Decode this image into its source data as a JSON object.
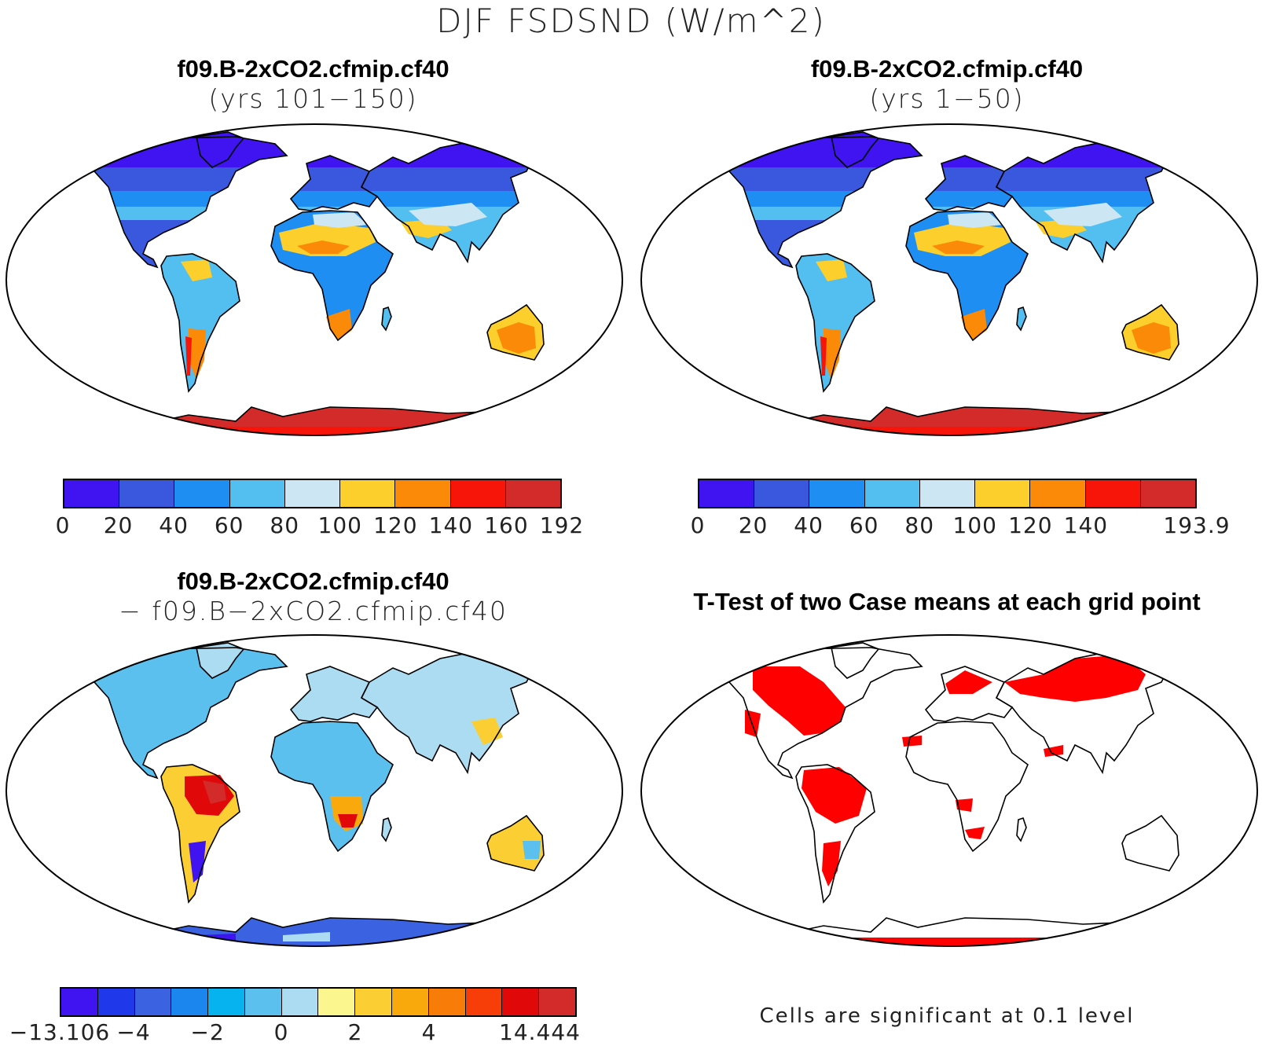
{
  "figure_title": "DJF FSDSND (W/m^2)",
  "panels": {
    "top_left": {
      "title_line1": "f09.B-2xCO2.cfmip.cf40",
      "title_line2": "(yrs 101−150)",
      "colorbar": {
        "colors": [
          "#3f14f0",
          "#3a58dd",
          "#1f8ef2",
          "#52bff0",
          "#cce6f4",
          "#fccf2c",
          "#fb8a08",
          "#f71408",
          "#d32a2a"
        ],
        "ticks": [
          "0",
          "20",
          "40",
          "60",
          "80",
          "100",
          "120",
          "140",
          "160",
          "192"
        ]
      }
    },
    "top_right": {
      "title_line1": "f09.B-2xCO2.cfmip.cf40",
      "title_line2": "(yrs 1−50)",
      "colorbar": {
        "colors": [
          "#3f14f0",
          "#3a58dd",
          "#1f8ef2",
          "#52bff0",
          "#cce6f4",
          "#fccf2c",
          "#fb8a08",
          "#f71408",
          "#d32a2a"
        ],
        "ticks": [
          "0",
          "20",
          "40",
          "60",
          "80",
          "100",
          "120",
          "140",
          "",
          "193.9"
        ]
      }
    },
    "bottom_left": {
      "title_line1": "f09.B-2xCO2.cfmip.cf40",
      "title_line2": "− f09.B−2xCO2.cfmip.cf40",
      "colorbar": {
        "colors": [
          "#3f14f0",
          "#1f39ea",
          "#3b62e0",
          "#1c86ef",
          "#06b3ee",
          "#5cc0ee",
          "#acdcf1",
          "#fcf68e",
          "#fbcf34",
          "#f9a90c",
          "#f87d08",
          "#f73e08",
          "#e00808",
          "#d32a2a"
        ],
        "ticks": [
          "−13.106",
          "",
          "−4",
          "",
          "−2",
          "",
          "0",
          "",
          "2",
          "",
          "4",
          "",
          "",
          "14.444"
        ]
      }
    },
    "bottom_right": {
      "title": "T-Test of two Case means at each grid point",
      "note": "Cells are significant at 0.1 level",
      "significance_color": "#ff0000"
    }
  }
}
